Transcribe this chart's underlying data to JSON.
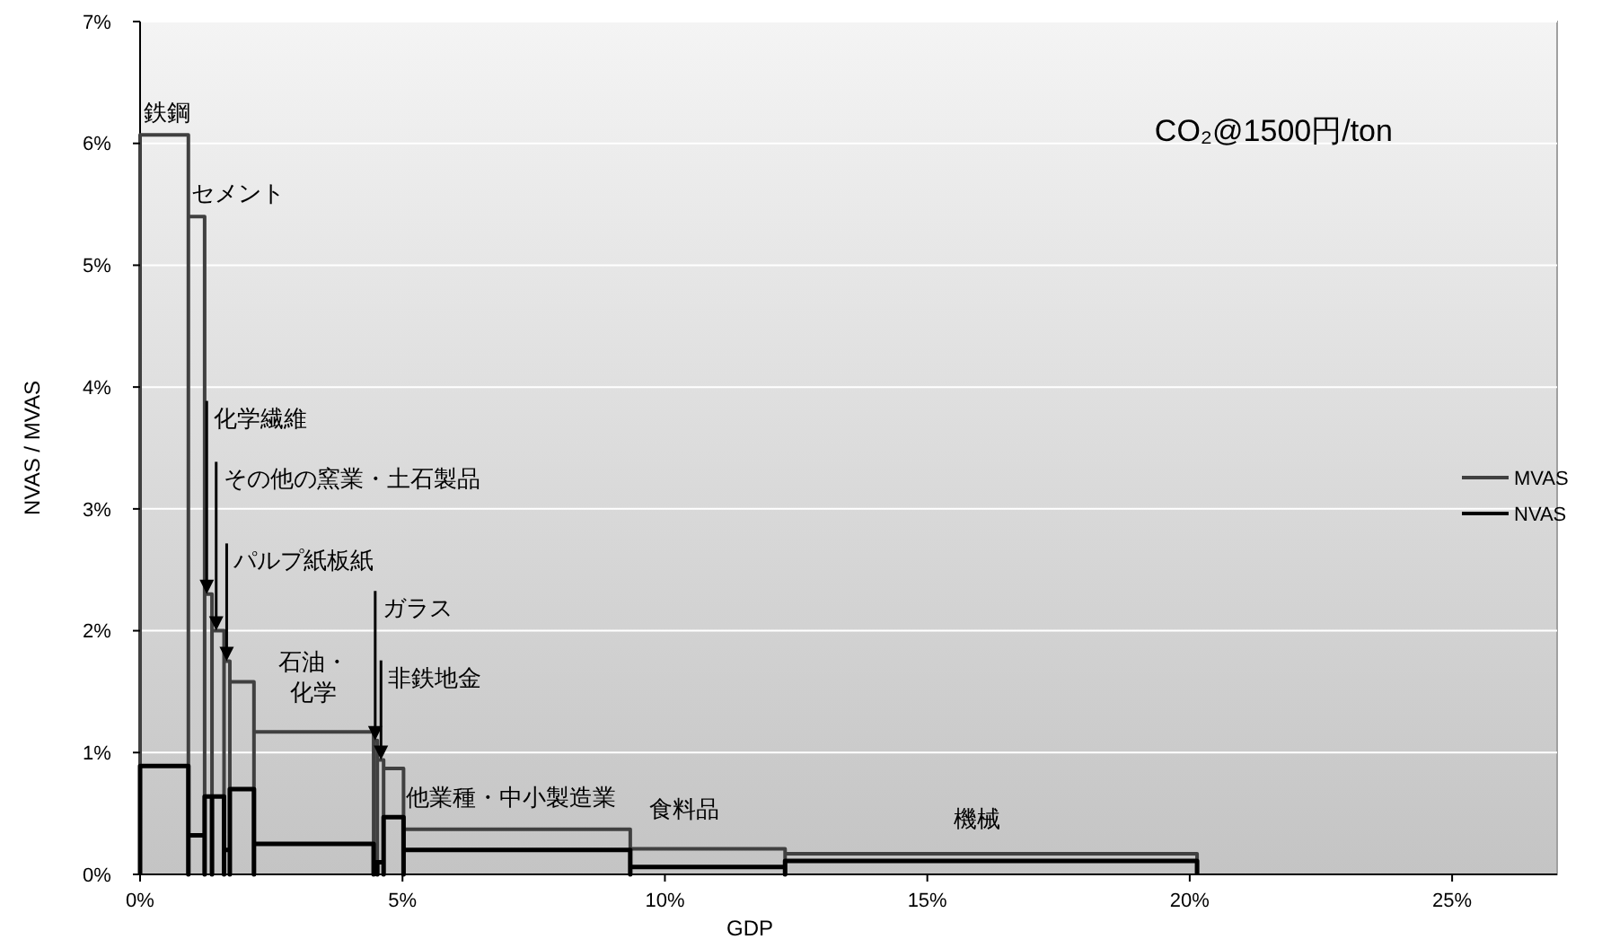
{
  "chart_data": {
    "type": "line",
    "xlabel": "GDP",
    "ylabel": "NVAS / MVAS",
    "series": [
      {
        "name": "MVAS",
        "color": "#404040",
        "x": [
          0,
          0,
          0.92,
          0.92,
          0.92,
          1.23,
          1.23,
          1.23,
          1.37,
          1.37,
          1.37,
          1.6,
          1.6,
          1.6,
          1.71,
          1.71,
          1.71,
          2.17,
          2.17,
          2.17,
          4.45,
          4.45,
          4.45,
          4.52,
          4.52,
          4.52,
          4.64,
          4.64,
          4.64,
          5.02,
          5.02,
          5.02,
          9.34,
          9.34,
          9.34,
          12.29,
          12.29,
          12.29,
          20.14,
          20.14
        ],
        "values": [
          0,
          6.07,
          6.07,
          0,
          5.4,
          5.4,
          0,
          2.3,
          2.3,
          0,
          2.0,
          2.0,
          0,
          1.75,
          1.75,
          0,
          1.58,
          1.58,
          0,
          1.17,
          1.17,
          0,
          1.1,
          1.1,
          0,
          0.94,
          0.94,
          0,
          0.87,
          0.87,
          0,
          0.37,
          0.37,
          0,
          0.21,
          0.21,
          0,
          0.17,
          0.17,
          0
        ]
      },
      {
        "name": "NVAS",
        "color": "#000000",
        "x": [
          0,
          0,
          0.92,
          0.92,
          0.92,
          1.23,
          1.23,
          1.23,
          1.37,
          1.37,
          1.37,
          1.6,
          1.6,
          1.6,
          1.71,
          1.71,
          1.71,
          2.17,
          2.17,
          2.17,
          4.45,
          4.45,
          4.45,
          4.52,
          4.52,
          4.52,
          4.64,
          4.64,
          4.64,
          5.02,
          5.02,
          5.02,
          9.34,
          9.34,
          9.34,
          12.29,
          12.29,
          12.29,
          20.14,
          20.14
        ],
        "values": [
          0,
          0.89,
          0.89,
          0,
          0.32,
          0.32,
          0,
          0.64,
          0.64,
          0,
          0.64,
          0.64,
          0,
          0.2,
          0.2,
          0,
          0.7,
          0.7,
          0,
          0.25,
          0.25,
          0,
          0.1,
          0.1,
          0,
          0.1,
          0.1,
          0,
          0.47,
          0.47,
          0,
          0.2,
          0.2,
          0,
          0.06,
          0.06,
          0,
          0.11,
          0.11,
          0
        ]
      }
    ],
    "xlim": [
      0,
      27
    ],
    "ylim": [
      0,
      7
    ],
    "xticks": [
      {
        "value": 0,
        "label": "0%"
      },
      {
        "value": 5,
        "label": "5%"
      },
      {
        "value": 10,
        "label": "10%"
      },
      {
        "value": 15,
        "label": "15%"
      },
      {
        "value": 20,
        "label": "20%"
      },
      {
        "value": 25,
        "label": "25%"
      }
    ],
    "yticks": [
      {
        "value": 0,
        "label": "0%"
      },
      {
        "value": 1,
        "label": "1%"
      },
      {
        "value": 2,
        "label": "2%"
      },
      {
        "value": 3,
        "label": "3%"
      },
      {
        "value": 4,
        "label": "4%"
      },
      {
        "value": 5,
        "label": "5%"
      },
      {
        "value": 6,
        "label": "6%"
      },
      {
        "value": 7,
        "label": "7%"
      }
    ],
    "grid": "y",
    "legend": "right",
    "annotations": [
      "CO₂@1500円/ton",
      "鉄鋼",
      "セメント",
      {
        "text": "化学繊維",
        "x": 1.27,
        "y": 2.3
      },
      {
        "text": "その他の窯業・土石製品",
        "x": 1.45,
        "y": 2.0
      },
      {
        "text": "パルプ紙板紙",
        "x": 1.65,
        "y": 1.75
      },
      "石油・化学",
      {
        "text": "ガラス",
        "x": 4.48,
        "y": 1.1
      },
      {
        "text": "非鉄地金",
        "x": 4.59,
        "y": 0.94
      },
      "他業種・中小製造業",
      "食料品",
      "機械"
    ]
  }
}
